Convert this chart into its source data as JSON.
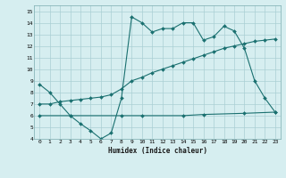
{
  "xlabel": "Humidex (Indice chaleur)",
  "bg_color": "#d6eef0",
  "grid_color": "#aacfd4",
  "line_color": "#1a7070",
  "xlim": [
    -0.5,
    23.5
  ],
  "ylim": [
    4,
    15.5
  ],
  "xticks": [
    0,
    1,
    2,
    3,
    4,
    5,
    6,
    7,
    8,
    9,
    10,
    11,
    12,
    13,
    14,
    15,
    16,
    17,
    18,
    19,
    20,
    21,
    22,
    23
  ],
  "yticks": [
    4,
    5,
    6,
    7,
    8,
    9,
    10,
    11,
    12,
    13,
    14,
    15
  ],
  "series1_x": [
    0,
    1,
    2,
    3,
    4,
    5,
    6,
    7,
    8,
    9,
    10,
    11,
    12,
    13,
    14,
    15,
    16,
    17,
    18,
    19,
    20,
    21,
    22,
    23
  ],
  "series1_y": [
    8.7,
    8.0,
    7.0,
    6.0,
    5.3,
    4.7,
    4.0,
    4.5,
    7.5,
    14.5,
    14.0,
    13.2,
    13.5,
    13.5,
    14.0,
    14.0,
    12.5,
    12.8,
    13.7,
    13.3,
    11.8,
    9.0,
    7.5,
    6.3
  ],
  "series2_x": [
    0,
    1,
    2,
    3,
    4,
    5,
    6,
    7,
    8,
    9,
    10,
    11,
    12,
    13,
    14,
    15,
    16,
    17,
    18,
    19,
    20,
    21,
    22,
    23
  ],
  "series2_y": [
    7.0,
    7.0,
    7.2,
    7.3,
    7.4,
    7.5,
    7.6,
    7.8,
    8.3,
    9.0,
    9.3,
    9.7,
    10.0,
    10.3,
    10.6,
    10.9,
    11.2,
    11.5,
    11.8,
    12.0,
    12.2,
    12.4,
    12.5,
    12.6
  ],
  "series3_x": [
    0,
    3,
    8,
    10,
    14,
    16,
    20,
    23
  ],
  "series3_y": [
    6.0,
    6.0,
    6.0,
    6.0,
    6.0,
    6.1,
    6.2,
    6.3
  ]
}
